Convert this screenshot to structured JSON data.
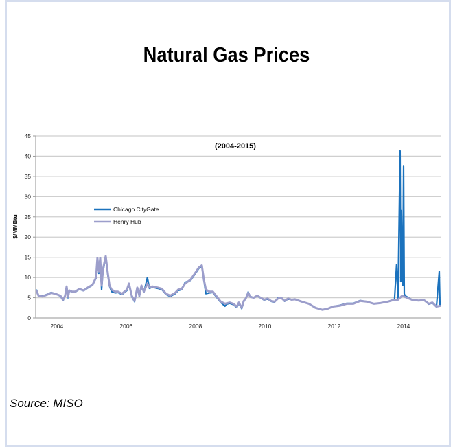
{
  "title": "Natural Gas Prices",
  "source": "Source: MISO",
  "chart_data": {
    "type": "line",
    "title": "Natural Gas Prices",
    "subtitle": "(2004-2015)",
    "xlabel": "",
    "ylabel": "$/MMBtu",
    "ylim": [
      0,
      45
    ],
    "xlim": [
      2003.89,
      2015.57
    ],
    "yticks": [
      0,
      5,
      10,
      15,
      20,
      25,
      30,
      35,
      40,
      45
    ],
    "xticks": [
      {
        "value": 2004.5,
        "label": "2004"
      },
      {
        "value": 2006.5,
        "label": "2006"
      },
      {
        "value": 2008.5,
        "label": "2008"
      },
      {
        "value": 2010.5,
        "label": "2010"
      },
      {
        "value": 2012.5,
        "label": "2012"
      },
      {
        "value": 2014.5,
        "label": "2014"
      }
    ],
    "grid": true,
    "legend_position": "left-middle",
    "colors": {
      "chicago": "#1b72bd",
      "henry": "#9c9ecb",
      "grid": "#cfcfcf"
    },
    "series": [
      {
        "name": "Chicago CityGate",
        "points": [
          [
            2003.91,
            7.0
          ],
          [
            2003.97,
            5.6
          ],
          [
            2004.08,
            5.4
          ],
          [
            2004.24,
            5.9
          ],
          [
            2004.34,
            6.3
          ],
          [
            2004.48,
            5.9
          ],
          [
            2004.6,
            5.4
          ],
          [
            2004.68,
            4.3
          ],
          [
            2004.74,
            5.5
          ],
          [
            2004.78,
            7.6
          ],
          [
            2004.82,
            5.0
          ],
          [
            2004.86,
            6.7
          ],
          [
            2004.94,
            6.4
          ],
          [
            2005.03,
            6.4
          ],
          [
            2005.15,
            7.1
          ],
          [
            2005.27,
            6.7
          ],
          [
            2005.39,
            7.4
          ],
          [
            2005.53,
            8.1
          ],
          [
            2005.63,
            9.8
          ],
          [
            2005.67,
            14.5
          ],
          [
            2005.71,
            11.0
          ],
          [
            2005.75,
            14.5
          ],
          [
            2005.79,
            7.0
          ],
          [
            2005.83,
            11.5
          ],
          [
            2005.91,
            15.0
          ],
          [
            2005.97,
            10.5
          ],
          [
            2006.02,
            7.8
          ],
          [
            2006.08,
            6.5
          ],
          [
            2006.18,
            6.2
          ],
          [
            2006.26,
            6.3
          ],
          [
            2006.38,
            5.8
          ],
          [
            2006.52,
            6.8
          ],
          [
            2006.58,
            8.2
          ],
          [
            2006.66,
            5.3
          ],
          [
            2006.74,
            4.0
          ],
          [
            2006.82,
            7.3
          ],
          [
            2006.88,
            5.3
          ],
          [
            2006.94,
            7.8
          ],
          [
            2007.01,
            6.3
          ],
          [
            2007.11,
            10.0
          ],
          [
            2007.17,
            7.3
          ],
          [
            2007.25,
            7.6
          ],
          [
            2007.41,
            7.3
          ],
          [
            2007.53,
            7.0
          ],
          [
            2007.65,
            5.8
          ],
          [
            2007.77,
            5.3
          ],
          [
            2007.91,
            6.0
          ],
          [
            2008.0,
            6.8
          ],
          [
            2008.1,
            7.0
          ],
          [
            2008.2,
            8.8
          ],
          [
            2008.36,
            9.3
          ],
          [
            2008.48,
            10.8
          ],
          [
            2008.6,
            12.3
          ],
          [
            2008.68,
            12.8
          ],
          [
            2008.74,
            9.3
          ],
          [
            2008.8,
            6.0
          ],
          [
            2008.9,
            6.2
          ],
          [
            2009.0,
            6.3
          ],
          [
            2009.09,
            5.3
          ],
          [
            2009.23,
            3.8
          ],
          [
            2009.35,
            2.9
          ],
          [
            2009.39,
            3.4
          ],
          [
            2009.49,
            3.6
          ],
          [
            2009.59,
            3.3
          ],
          [
            2009.69,
            2.6
          ],
          [
            2009.75,
            3.6
          ],
          [
            2009.83,
            2.3
          ],
          [
            2009.89,
            4.0
          ],
          [
            2009.95,
            4.9
          ],
          [
            2010.02,
            6.4
          ],
          [
            2010.08,
            5.3
          ],
          [
            2010.18,
            5.0
          ],
          [
            2010.28,
            5.4
          ],
          [
            2010.38,
            4.9
          ],
          [
            2010.48,
            4.4
          ],
          [
            2010.58,
            4.7
          ],
          [
            2010.68,
            4.1
          ],
          [
            2010.78,
            3.9
          ],
          [
            2010.88,
            5.0
          ],
          [
            2010.97,
            5.1
          ],
          [
            2011.07,
            4.1
          ],
          [
            2011.17,
            4.7
          ],
          [
            2011.27,
            4.5
          ],
          [
            2011.37,
            4.6
          ],
          [
            2011.57,
            4.0
          ],
          [
            2011.77,
            3.5
          ],
          [
            2011.96,
            2.5
          ],
          [
            2012.16,
            2.0
          ],
          [
            2012.32,
            2.3
          ],
          [
            2012.46,
            2.8
          ],
          [
            2012.66,
            3.1
          ],
          [
            2012.86,
            3.6
          ],
          [
            2013.05,
            3.6
          ],
          [
            2013.25,
            4.3
          ],
          [
            2013.45,
            4.0
          ],
          [
            2013.65,
            3.5
          ],
          [
            2013.85,
            3.7
          ],
          [
            2014.04,
            4.0
          ],
          [
            2014.24,
            4.6
          ],
          [
            2014.3,
            13.2
          ],
          [
            2014.34,
            4.8
          ],
          [
            2014.4,
            41.3
          ],
          [
            2014.42,
            9.0
          ],
          [
            2014.44,
            26.5
          ],
          [
            2014.46,
            15.0
          ],
          [
            2014.48,
            8.0
          ],
          [
            2014.5,
            37.5
          ],
          [
            2014.52,
            6.0
          ],
          [
            2014.54,
            5.5
          ],
          [
            2014.74,
            4.5
          ],
          [
            2014.93,
            4.3
          ],
          [
            2015.09,
            4.4
          ],
          [
            2015.23,
            3.4
          ],
          [
            2015.33,
            3.7
          ],
          [
            2015.45,
            2.7
          ],
          [
            2015.53,
            11.5
          ],
          [
            2015.55,
            3.2
          ],
          [
            2015.57,
            3.0
          ]
        ]
      },
      {
        "name": "Henry Hub",
        "points": [
          [
            2003.91,
            6.8
          ],
          [
            2003.97,
            5.5
          ],
          [
            2004.08,
            5.3
          ],
          [
            2004.24,
            5.8
          ],
          [
            2004.34,
            6.2
          ],
          [
            2004.48,
            5.9
          ],
          [
            2004.6,
            5.5
          ],
          [
            2004.68,
            4.5
          ],
          [
            2004.74,
            5.5
          ],
          [
            2004.78,
            7.8
          ],
          [
            2004.82,
            5.2
          ],
          [
            2004.86,
            6.8
          ],
          [
            2004.94,
            6.5
          ],
          [
            2005.03,
            6.5
          ],
          [
            2005.15,
            7.2
          ],
          [
            2005.27,
            6.8
          ],
          [
            2005.39,
            7.5
          ],
          [
            2005.53,
            8.2
          ],
          [
            2005.63,
            10.0
          ],
          [
            2005.67,
            14.8
          ],
          [
            2005.71,
            11.5
          ],
          [
            2005.75,
            14.8
          ],
          [
            2005.79,
            8.0
          ],
          [
            2005.83,
            12.0
          ],
          [
            2005.91,
            15.3
          ],
          [
            2005.97,
            11.0
          ],
          [
            2006.02,
            8.0
          ],
          [
            2006.08,
            7.0
          ],
          [
            2006.18,
            6.5
          ],
          [
            2006.26,
            6.5
          ],
          [
            2006.38,
            6.0
          ],
          [
            2006.52,
            7.0
          ],
          [
            2006.58,
            8.5
          ],
          [
            2006.66,
            5.5
          ],
          [
            2006.74,
            4.2
          ],
          [
            2006.82,
            7.5
          ],
          [
            2006.88,
            5.5
          ],
          [
            2006.94,
            8.0
          ],
          [
            2007.01,
            6.5
          ],
          [
            2007.11,
            8.5
          ],
          [
            2007.17,
            7.5
          ],
          [
            2007.25,
            7.8
          ],
          [
            2007.41,
            7.5
          ],
          [
            2007.53,
            7.2
          ],
          [
            2007.65,
            6.0
          ],
          [
            2007.77,
            5.5
          ],
          [
            2007.91,
            6.2
          ],
          [
            2008.0,
            7.0
          ],
          [
            2008.1,
            7.2
          ],
          [
            2008.2,
            8.5
          ],
          [
            2008.36,
            9.5
          ],
          [
            2008.48,
            11.0
          ],
          [
            2008.6,
            12.5
          ],
          [
            2008.68,
            13.0
          ],
          [
            2008.74,
            9.5
          ],
          [
            2008.8,
            7.0
          ],
          [
            2008.9,
            6.5
          ],
          [
            2009.0,
            6.5
          ],
          [
            2009.09,
            5.5
          ],
          [
            2009.23,
            4.0
          ],
          [
            2009.35,
            3.5
          ],
          [
            2009.39,
            3.6
          ],
          [
            2009.49,
            3.8
          ],
          [
            2009.59,
            3.5
          ],
          [
            2009.69,
            2.8
          ],
          [
            2009.75,
            3.8
          ],
          [
            2009.83,
            2.5
          ],
          [
            2009.89,
            4.2
          ],
          [
            2009.95,
            4.8
          ],
          [
            2010.02,
            6.2
          ],
          [
            2010.08,
            5.2
          ],
          [
            2010.18,
            5.0
          ],
          [
            2010.28,
            5.5
          ],
          [
            2010.38,
            5.0
          ],
          [
            2010.48,
            4.5
          ],
          [
            2010.58,
            4.8
          ],
          [
            2010.68,
            4.2
          ],
          [
            2010.78,
            4.0
          ],
          [
            2010.88,
            4.8
          ],
          [
            2010.97,
            5.0
          ],
          [
            2011.07,
            4.2
          ],
          [
            2011.17,
            4.8
          ],
          [
            2011.27,
            4.5
          ],
          [
            2011.37,
            4.6
          ],
          [
            2011.57,
            4.0
          ],
          [
            2011.77,
            3.5
          ],
          [
            2011.96,
            2.5
          ],
          [
            2012.16,
            2.0
          ],
          [
            2012.32,
            2.3
          ],
          [
            2012.46,
            2.8
          ],
          [
            2012.66,
            3.0
          ],
          [
            2012.86,
            3.5
          ],
          [
            2013.05,
            3.5
          ],
          [
            2013.25,
            4.2
          ],
          [
            2013.45,
            4.0
          ],
          [
            2013.65,
            3.5
          ],
          [
            2013.85,
            3.7
          ],
          [
            2014.04,
            4.0
          ],
          [
            2014.24,
            4.5
          ],
          [
            2014.34,
            4.5
          ],
          [
            2014.4,
            5.0
          ],
          [
            2014.46,
            5.5
          ],
          [
            2014.54,
            5.2
          ],
          [
            2014.74,
            4.5
          ],
          [
            2014.93,
            4.3
          ],
          [
            2015.09,
            4.4
          ],
          [
            2015.23,
            3.5
          ],
          [
            2015.33,
            3.8
          ],
          [
            2015.45,
            2.8
          ],
          [
            2015.57,
            3.0
          ]
        ]
      }
    ]
  }
}
